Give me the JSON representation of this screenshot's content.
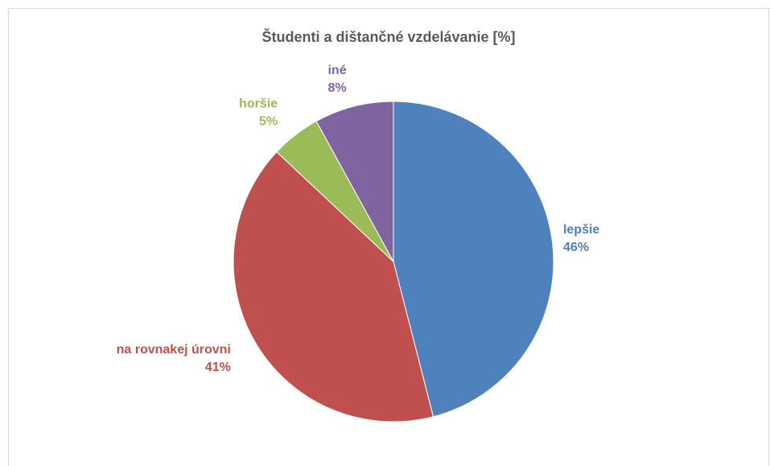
{
  "chart_data": {
    "type": "pie",
    "title": "Študenti a dištančné vzdelávanie [%]",
    "categories": [
      "lepšie",
      "na rovnakej úrovni",
      "horšie",
      "iné"
    ],
    "values": [
      46,
      41,
      5,
      8
    ],
    "value_labels": [
      "46%",
      "41%",
      "5%",
      "8%"
    ],
    "colors": [
      "#4f81bd",
      "#c0504d",
      "#9bbb59",
      "#8064a2"
    ]
  }
}
